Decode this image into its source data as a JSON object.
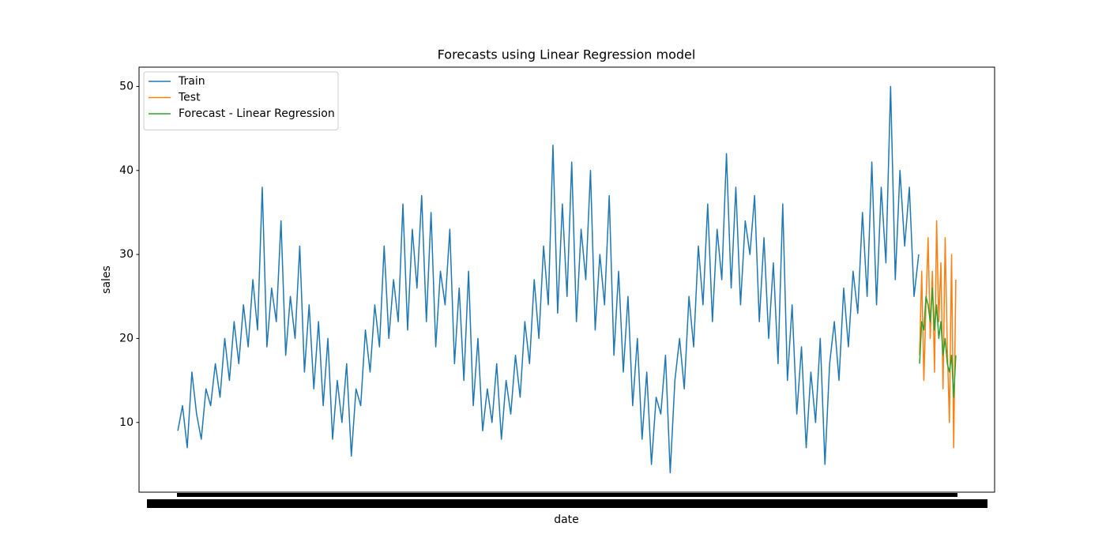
{
  "chart_data": {
    "type": "line",
    "title": "Forecasts using Linear Regression model",
    "x_label": "date",
    "y_label": "sales",
    "xlim": [
      -91,
      1916
    ],
    "ylim": [
      1.7,
      52.3
    ],
    "yticks": [
      10,
      20,
      30,
      40,
      50
    ],
    "grid": false,
    "legend": "upper left",
    "series": [
      {
        "name": "Train",
        "color": "#1f77b4",
        "x": [
          0,
          11,
          22,
          33,
          44,
          55,
          66,
          77,
          88,
          99,
          110,
          121,
          132,
          143,
          154,
          165,
          176,
          187,
          198,
          209,
          220,
          231,
          242,
          253,
          264,
          275,
          286,
          297,
          308,
          319,
          330,
          341,
          352,
          363,
          374,
          385,
          396,
          407,
          418,
          429,
          440,
          451,
          462,
          473,
          484,
          495,
          506,
          517,
          528,
          539,
          550,
          561,
          572,
          583,
          594,
          605,
          616,
          627,
          638,
          649,
          660,
          671,
          682,
          693,
          704,
          715,
          726,
          737,
          748,
          759,
          770,
          781,
          792,
          803,
          814,
          825,
          836,
          847,
          858,
          869,
          880,
          891,
          902,
          913,
          924,
          935,
          946,
          957,
          968,
          979,
          990,
          1001,
          1012,
          1023,
          1034,
          1045,
          1056,
          1067,
          1078,
          1089,
          1100,
          1111,
          1122,
          1133,
          1144,
          1155,
          1166,
          1177,
          1188,
          1199,
          1210,
          1221,
          1232,
          1243,
          1254,
          1265,
          1276,
          1287,
          1298,
          1309,
          1320,
          1331,
          1342,
          1353,
          1364,
          1375,
          1386,
          1397,
          1408,
          1419,
          1430,
          1441,
          1452,
          1463,
          1474,
          1485,
          1496,
          1507,
          1518,
          1529,
          1540,
          1551,
          1562,
          1573,
          1584,
          1595,
          1606,
          1617,
          1628,
          1639,
          1650,
          1661,
          1672,
          1683,
          1694,
          1705,
          1716,
          1727,
          1738
        ],
        "values": [
          9,
          12,
          7,
          16,
          11,
          8,
          14,
          12,
          17,
          13,
          20,
          15,
          22,
          17,
          24,
          19,
          27,
          21,
          38,
          19,
          26,
          22,
          34,
          18,
          25,
          20,
          31,
          16,
          24,
          14,
          22,
          12,
          20,
          8,
          15,
          10,
          17,
          6,
          14,
          12,
          21,
          16,
          24,
          19,
          31,
          20,
          27,
          22,
          36,
          21,
          33,
          26,
          37,
          22,
          35,
          19,
          28,
          24,
          33,
          17,
          26,
          15,
          28,
          12,
          20,
          9,
          14,
          10,
          17,
          8,
          15,
          11,
          18,
          13,
          22,
          17,
          27,
          20,
          31,
          24,
          43,
          23,
          36,
          25,
          41,
          22,
          33,
          27,
          40,
          21,
          30,
          24,
          37,
          18,
          28,
          16,
          25,
          12,
          20,
          8,
          16,
          5,
          13,
          11,
          18,
          4,
          15,
          20,
          14,
          25,
          19,
          31,
          24,
          36,
          22,
          33,
          27,
          42,
          26,
          38,
          24,
          34,
          30,
          37,
          22,
          32,
          20,
          29,
          17,
          36,
          15,
          24,
          11,
          19,
          7,
          16,
          10,
          20,
          5,
          17,
          22,
          15,
          26,
          19,
          28,
          23,
          35,
          25,
          41,
          24,
          38,
          29,
          50,
          27,
          40,
          31,
          38,
          25,
          30
        ]
      },
      {
        "name": "Test",
        "color": "#ff7f0e",
        "x": [
          1740,
          1745,
          1750,
          1755,
          1760,
          1765,
          1770,
          1775,
          1780,
          1785,
          1790,
          1795,
          1800,
          1805,
          1810,
          1815,
          1820,
          1825
        ],
        "values": [
          18,
          28,
          15,
          24,
          32,
          20,
          28,
          16,
          34,
          22,
          29,
          14,
          32,
          19,
          10,
          30,
          7,
          27
        ]
      },
      {
        "name": "Forecast - Linear Regression",
        "color": "#2ca02c",
        "x": [
          1740,
          1745,
          1750,
          1755,
          1760,
          1765,
          1770,
          1775,
          1780,
          1785,
          1790,
          1795,
          1800,
          1805,
          1810,
          1815,
          1820,
          1825
        ],
        "values": [
          17,
          22,
          21,
          25,
          24,
          22,
          26,
          21,
          24,
          20,
          22,
          18,
          20,
          17,
          16,
          18,
          13,
          18
        ]
      }
    ]
  }
}
